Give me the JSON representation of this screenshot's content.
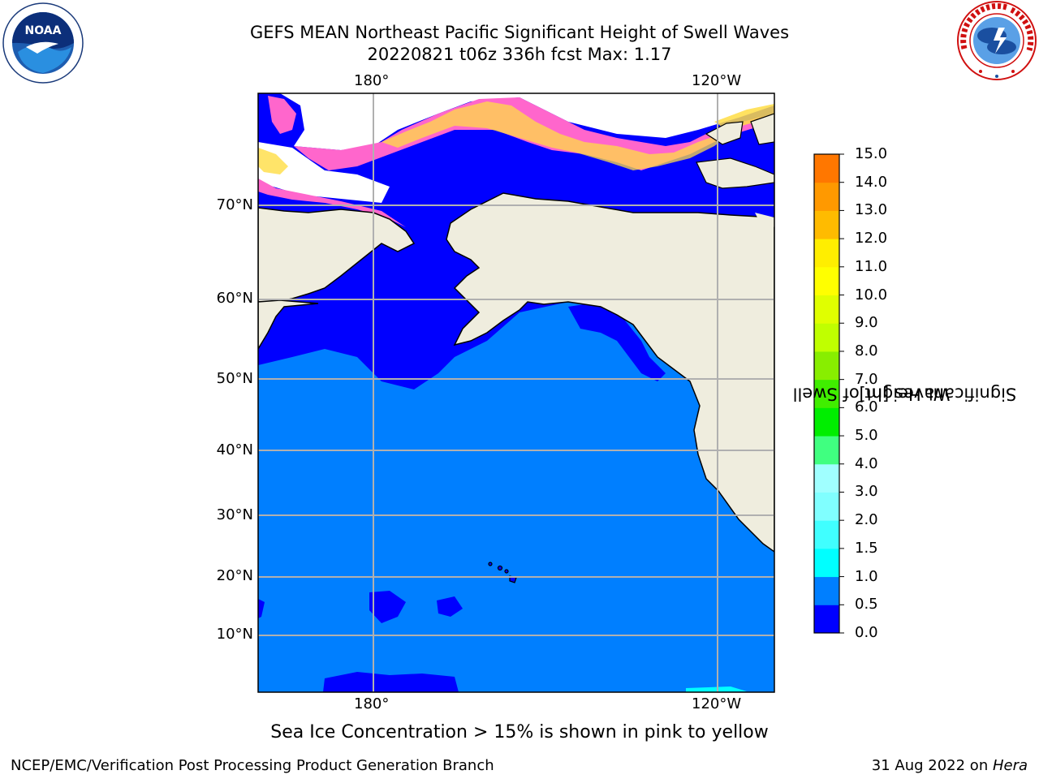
{
  "title": {
    "line1": "GEFS MEAN Northeast Pacific Significant Height of Swell Waves",
    "line2": "20220821 t06z 336h fcst   Max: 1.17"
  },
  "logos": {
    "left": {
      "name": "noaa-logo",
      "text": "NOAA"
    },
    "right": {
      "name": "nws-logo",
      "text": "NATIONAL WEATHER SERVICE"
    }
  },
  "map": {
    "lon_labels_top": [
      "180°",
      "120°W"
    ],
    "lon_labels_bottom": [
      "180°",
      "120°W"
    ],
    "lat_labels": [
      "70°N",
      "60°N",
      "50°N",
      "40°N",
      "30°N",
      "20°N",
      "10°N"
    ],
    "colors": {
      "land": "#efedde",
      "ocean_low": "#0000ff",
      "ocean_mid": "#007fff",
      "ice_pink": "#ff66cc",
      "ice_yellow": "#ffdd44",
      "grid": "#b0b0b0"
    }
  },
  "colorbar": {
    "title_line1": "Significant Height of Swell",
    "title_line2": "Waves [m]",
    "ticks": [
      "15.0",
      "14.0",
      "13.0",
      "12.0",
      "11.0",
      "10.0",
      "9.0",
      "8.0",
      "7.0",
      "6.0",
      "5.0",
      "4.0",
      "3.0",
      "2.0",
      "1.5",
      "1.0",
      "0.5",
      "0.0"
    ],
    "colors": [
      "#0000ff",
      "#007fff",
      "#00ffff",
      "#40ffff",
      "#80ffff",
      "#a0ffff",
      "#40ff80",
      "#00ee00",
      "#40ee00",
      "#88ee00",
      "#c0ff00",
      "#e0ff00",
      "#ffff00",
      "#ffee00",
      "#ffbb00",
      "#ff9900",
      "#ff7700",
      "#ff5500",
      "#ff3300",
      "#ff0000"
    ]
  },
  "caption": "Sea Ice Concentration > 15% is shown in pink to yellow",
  "footer": {
    "left": "NCEP/EMC/Verification Post Processing Product Generation Branch",
    "right_date": "31 Aug 2022 on ",
    "right_host": "Hera"
  }
}
